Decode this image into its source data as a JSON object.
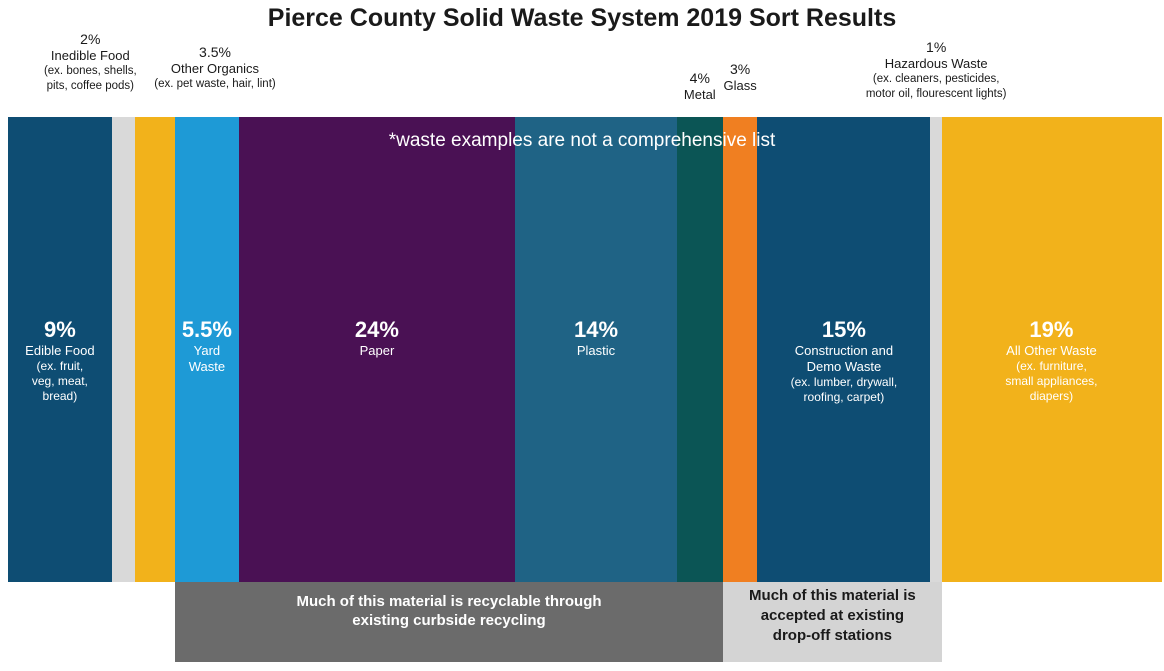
{
  "chart_data": {
    "type": "bar",
    "title": "Pierce County Solid Waste System 2019 Sort Results",
    "note": "*waste examples are not a comprehensive list",
    "segments": [
      {
        "pct_label": "9%",
        "value": 9,
        "name_lines": [
          "Edible Food"
        ],
        "example_lines": [
          "(ex. fruit,",
          "veg, meat,",
          "bread)"
        ],
        "color": "#0e4d73",
        "label_pos": "inside"
      },
      {
        "pct_label": "2%",
        "value": 2,
        "name_lines": [
          "Inedible Food"
        ],
        "example_lines": [
          "(ex. bones, shells,",
          "pits, coffee pods)"
        ],
        "color": "#d9d9d9",
        "label_pos": "above"
      },
      {
        "pct_label": "3.5%",
        "value": 3.5,
        "name_lines": [
          "Other Organics"
        ],
        "example_lines": [
          "(ex. pet waste, hair, lint)"
        ],
        "color": "#f2b21b",
        "label_pos": "above"
      },
      {
        "pct_label": "5.5%",
        "value": 5.5,
        "name_lines": [
          "Yard",
          "Waste"
        ],
        "example_lines": [],
        "color": "#1e9ad6",
        "label_pos": "inside"
      },
      {
        "pct_label": "24%",
        "value": 24,
        "name_lines": [
          "Paper"
        ],
        "example_lines": [],
        "color": "#4a1154",
        "label_pos": "inside"
      },
      {
        "pct_label": "14%",
        "value": 14,
        "name_lines": [
          "Plastic"
        ],
        "example_lines": [],
        "color": "#1f6385",
        "label_pos": "inside"
      },
      {
        "pct_label": "4%",
        "value": 4,
        "name_lines": [
          "Metal"
        ],
        "example_lines": [],
        "color": "#0b5555",
        "label_pos": "above"
      },
      {
        "pct_label": "3%",
        "value": 3,
        "name_lines": [
          "Glass"
        ],
        "example_lines": [],
        "color": "#f07f21",
        "label_pos": "above"
      },
      {
        "pct_label": "15%",
        "value": 15,
        "name_lines": [
          "Construction and",
          "Demo Waste"
        ],
        "example_lines": [
          "(ex. lumber, drywall,",
          "roofing, carpet)"
        ],
        "color": "#0e4d73",
        "label_pos": "inside"
      },
      {
        "pct_label": "1%",
        "value": 1,
        "name_lines": [
          "Hazardous Waste"
        ],
        "example_lines": [
          "(ex. cleaners, pesticides,",
          "motor oil, flourescent lights)"
        ],
        "color": "#d9d9d9",
        "label_pos": "above"
      },
      {
        "pct_label": "19%",
        "value": 19,
        "name_lines": [
          "All Other Waste"
        ],
        "example_lines": [
          "(ex. furniture,",
          "small appliances,",
          "diapers)"
        ],
        "color": "#f2b21b",
        "label_pos": "inside"
      }
    ],
    "groups": [
      {
        "text_lines": [
          "Much of this material is recyclable through",
          "existing curbside recycling"
        ],
        "spans_segments": [
          "Yard Waste",
          "Paper",
          "Plastic",
          "Metal"
        ],
        "color": "#6b6b6b"
      },
      {
        "text_lines": [
          "Much of this material is",
          "accepted at existing",
          "drop-off stations"
        ],
        "spans_segments": [
          "Glass",
          "Construction and Demo Waste",
          "Hazardous Waste"
        ],
        "color": "#d4d4d4"
      }
    ]
  }
}
